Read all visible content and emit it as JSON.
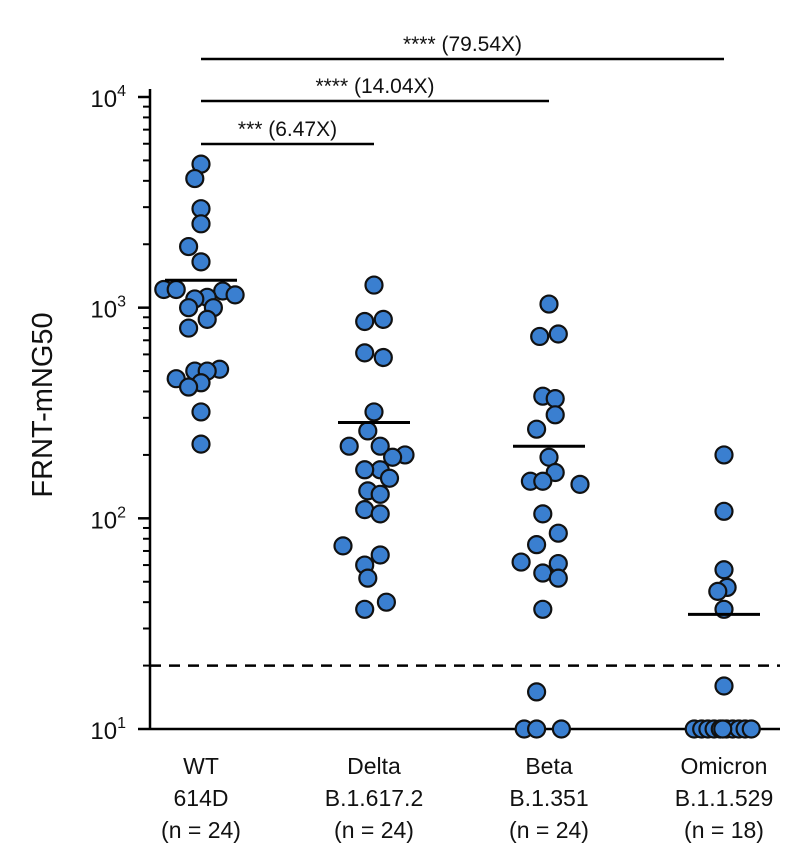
{
  "chart_data": {
    "type": "scatter",
    "ylabel": "FRNT-mNG50",
    "yscale": "log",
    "ylim": [
      10,
      10000
    ],
    "y_ticks": [
      {
        "value": 10,
        "base": "10",
        "exp": "1"
      },
      {
        "value": 100,
        "base": "10",
        "exp": "2"
      },
      {
        "value": 1000,
        "base": "10",
        "exp": "3"
      },
      {
        "value": 10000,
        "base": "10",
        "exp": "4"
      }
    ],
    "grid": false,
    "legend": "none",
    "point_color": "#3a7fd0",
    "detection_limit": 20,
    "categories": [
      {
        "line1": "WT",
        "line2": "614D",
        "line3": "(n = 24)"
      },
      {
        "line1": "Delta",
        "line2": "B.1.617.2",
        "line3": "(n = 24)"
      },
      {
        "line1": "Beta",
        "line2": "B.1.351",
        "line3": "(n = 24)"
      },
      {
        "line1": "Omicron",
        "line2": "B.1.1.529",
        "line3": "(n = 18)"
      }
    ],
    "groups": [
      {
        "mean": 1350,
        "points": [
          {
            "y": 4800,
            "o": 0
          },
          {
            "y": 4100,
            "o": -0.1
          },
          {
            "y": 2950,
            "o": 0
          },
          {
            "y": 2500,
            "o": 0
          },
          {
            "y": 1950,
            "o": -0.2
          },
          {
            "y": 1650,
            "o": 0
          },
          {
            "y": 1220,
            "o": -0.6
          },
          {
            "y": 1220,
            "o": -0.4
          },
          {
            "y": 1200,
            "o": 0.35
          },
          {
            "y": 1150,
            "o": 0.55
          },
          {
            "y": 1120,
            "o": 0.1
          },
          {
            "y": 1100,
            "o": -0.1
          },
          {
            "y": 1000,
            "o": -0.2
          },
          {
            "y": 1000,
            "o": 0.2
          },
          {
            "y": 880,
            "o": 0.1
          },
          {
            "y": 800,
            "o": -0.2
          },
          {
            "y": 510,
            "o": 0.3
          },
          {
            "y": 500,
            "o": -0.1
          },
          {
            "y": 500,
            "o": 0.1
          },
          {
            "y": 460,
            "o": -0.4
          },
          {
            "y": 440,
            "o": 0
          },
          {
            "y": 420,
            "o": -0.2
          },
          {
            "y": 320,
            "o": 0
          },
          {
            "y": 225,
            "o": 0
          }
        ]
      },
      {
        "mean": 285,
        "points": [
          {
            "y": 1280,
            "o": 0
          },
          {
            "y": 880,
            "o": 0.15
          },
          {
            "y": 860,
            "o": -0.15
          },
          {
            "y": 610,
            "o": -0.15
          },
          {
            "y": 580,
            "o": 0.15
          },
          {
            "y": 320,
            "o": 0
          },
          {
            "y": 260,
            "o": -0.1
          },
          {
            "y": 220,
            "o": 0.1
          },
          {
            "y": 220,
            "o": -0.4
          },
          {
            "y": 200,
            "o": 0.5
          },
          {
            "y": 195,
            "o": 0.3
          },
          {
            "y": 170,
            "o": 0.1
          },
          {
            "y": 170,
            "o": -0.15
          },
          {
            "y": 155,
            "o": 0.25
          },
          {
            "y": 135,
            "o": -0.1
          },
          {
            "y": 130,
            "o": 0.1
          },
          {
            "y": 110,
            "o": -0.15
          },
          {
            "y": 105,
            "o": 0.1
          },
          {
            "y": 74,
            "o": -0.5
          },
          {
            "y": 67,
            "o": 0.1
          },
          {
            "y": 60,
            "o": -0.15
          },
          {
            "y": 52,
            "o": -0.1
          },
          {
            "y": 40,
            "o": 0.2
          },
          {
            "y": 37,
            "o": -0.15
          }
        ]
      },
      {
        "mean": 220,
        "points": [
          {
            "y": 1040,
            "o": 0
          },
          {
            "y": 750,
            "o": 0.15
          },
          {
            "y": 730,
            "o": -0.15
          },
          {
            "y": 380,
            "o": -0.1
          },
          {
            "y": 370,
            "o": 0.1
          },
          {
            "y": 310,
            "o": 0.1
          },
          {
            "y": 265,
            "o": -0.2
          },
          {
            "y": 195,
            "o": 0
          },
          {
            "y": 165,
            "o": 0.1
          },
          {
            "y": 150,
            "o": -0.3
          },
          {
            "y": 150,
            "o": -0.1
          },
          {
            "y": 145,
            "o": 0.5
          },
          {
            "y": 105,
            "o": -0.1
          },
          {
            "y": 85,
            "o": 0.15
          },
          {
            "y": 75,
            "o": -0.2
          },
          {
            "y": 62,
            "o": -0.45
          },
          {
            "y": 61,
            "o": 0.15
          },
          {
            "y": 55,
            "o": -0.1
          },
          {
            "y": 52,
            "o": 0.15
          },
          {
            "y": 37,
            "o": -0.1
          },
          {
            "y": 15,
            "o": -0.2
          },
          {
            "y": 10,
            "o": -0.4
          },
          {
            "y": 10,
            "o": -0.2
          },
          {
            "y": 10,
            "o": 0.2
          }
        ]
      },
      {
        "mean": 35,
        "points": [
          {
            "y": 200,
            "o": 0
          },
          {
            "y": 108,
            "o": 0
          },
          {
            "y": 57,
            "o": 0
          },
          {
            "y": 47,
            "o": 0.05
          },
          {
            "y": 45,
            "o": -0.1
          },
          {
            "y": 37,
            "o": 0
          },
          {
            "y": 16,
            "o": 0
          },
          {
            "y": 10,
            "o": -0.48
          },
          {
            "y": 10,
            "o": -0.36
          },
          {
            "y": 10,
            "o": -0.26
          },
          {
            "y": 10,
            "o": -0.16
          },
          {
            "y": 10,
            "o": -0.06
          },
          {
            "y": 10,
            "o": 0.04
          },
          {
            "y": 10,
            "o": 0.14
          },
          {
            "y": 10,
            "o": 0.24
          },
          {
            "y": 10,
            "o": 0.34
          },
          {
            "y": 10,
            "o": 0.44
          },
          {
            "y": 10,
            "o": -0.02
          }
        ]
      }
    ],
    "comparisons": [
      {
        "from": 0,
        "to": 3,
        "label": "**** (79.54X)",
        "level": 2
      },
      {
        "from": 0,
        "to": 2,
        "label": "**** (14.04X)",
        "level": 1
      },
      {
        "from": 0,
        "to": 1,
        "label": "*** (6.47X)",
        "level": 0
      }
    ]
  }
}
